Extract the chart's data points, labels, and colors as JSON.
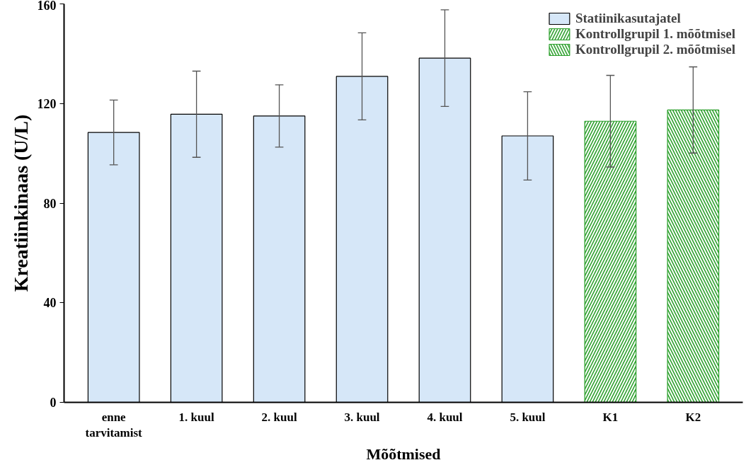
{
  "chart_data": {
    "type": "bar",
    "xlabel": "Mõõtmised",
    "ylabel": "Kreatiinkinaas (U/L)",
    "categories": [
      "enne tarvitamist",
      "1. kuul",
      "2. kuul",
      "3. kuul",
      "4. kuul",
      "5. kuul",
      "K1",
      "K2"
    ],
    "series": [
      {
        "name": "Statiinikasutajatel",
        "color": "#d6e7f8",
        "values": [
          108.4,
          115.7,
          115,
          130.9,
          138.2,
          107,
          null,
          null
        ],
        "errors": [
          13,
          17.3,
          12.5,
          17.5,
          19.4,
          17.7,
          null,
          null
        ]
      },
      {
        "name": "Kontrollgrupil 1. mõõtmisel",
        "color": "#2ca02c",
        "values": [
          null,
          null,
          null,
          null,
          null,
          null,
          112.9,
          null
        ],
        "errors": [
          null,
          null,
          null,
          null,
          null,
          null,
          18.4,
          null
        ]
      },
      {
        "name": "Kontrollgrupil 2. mõõtmisel",
        "color": "#2ca02c",
        "values": [
          null,
          null,
          null,
          null,
          null,
          null,
          null,
          117.4
        ],
        "errors": [
          null,
          null,
          null,
          null,
          null,
          null,
          null,
          17.3
        ]
      }
    ],
    "ylim": [
      0,
      160
    ],
    "yticks": [
      0,
      40,
      80,
      120,
      160
    ],
    "grid": false,
    "legend": "top right"
  }
}
